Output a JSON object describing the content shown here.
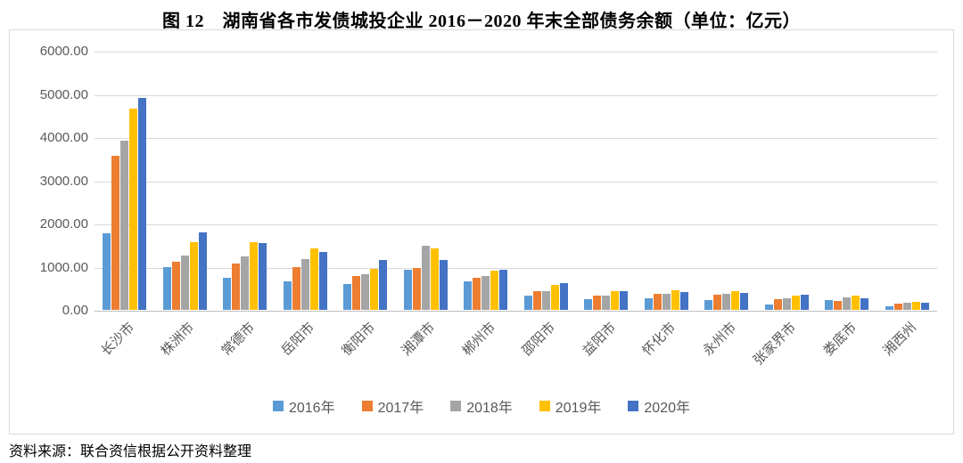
{
  "figure": {
    "title": "图 12　湖南省各市发债城投企业 2016－2020 年末全部债务余额（单位：亿元）",
    "source_note": "资料来源：联合资信根据公开资料整理"
  },
  "chart_data": {
    "type": "bar",
    "title": "湖南省各市发债城投企业 2016－2020 年末全部债务余额",
    "unit": "亿元",
    "categories": [
      "长沙市",
      "株洲市",
      "常德市",
      "岳阳市",
      "衡阳市",
      "湘潭市",
      "郴州市",
      "邵阳市",
      "益阳市",
      "怀化市",
      "永州市",
      "张家界市",
      "娄底市",
      "湘西州"
    ],
    "series": [
      {
        "name": "2016年",
        "color": "#5B9BD5",
        "values": [
          1780,
          980,
          740,
          660,
          590,
          930,
          660,
          340,
          250,
          260,
          230,
          130,
          230,
          80
        ]
      },
      {
        "name": "2017年",
        "color": "#ED7D31",
        "values": [
          3570,
          1120,
          1080,
          990,
          780,
          970,
          740,
          430,
          340,
          380,
          360,
          250,
          210,
          140
        ]
      },
      {
        "name": "2018年",
        "color": "#A5A5A5",
        "values": [
          3920,
          1260,
          1230,
          1180,
          830,
          1490,
          780,
          440,
          340,
          380,
          380,
          270,
          280,
          160
        ]
      },
      {
        "name": "2019年",
        "color": "#FFC000",
        "values": [
          4650,
          1570,
          1560,
          1420,
          940,
          1420,
          900,
          570,
          430,
          450,
          440,
          330,
          340,
          190
        ]
      },
      {
        "name": "2020年",
        "color": "#4472C4",
        "values": [
          4900,
          1800,
          1550,
          1350,
          1160,
          1160,
          930,
          610,
          430,
          420,
          400,
          350,
          270,
          170
        ]
      }
    ],
    "y_axis": {
      "min": 0,
      "max": 6000,
      "step": 1000,
      "tick_labels": [
        "0.00",
        "1000.00",
        "2000.00",
        "3000.00",
        "4000.00",
        "5000.00",
        "6000.00"
      ]
    },
    "x_axis": {
      "label_rotation_deg": 45
    },
    "grid": true,
    "legend_position": "bottom"
  }
}
